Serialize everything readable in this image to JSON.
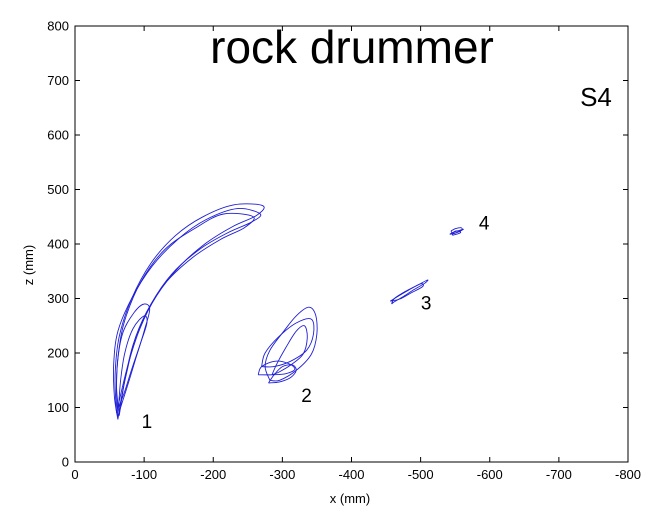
{
  "chart_data": {
    "type": "line",
    "title": "rock drummer",
    "subtitle": "S4",
    "xlabel": "x (mm)",
    "ylabel": "z (mm)",
    "xlim": [
      0,
      -800
    ],
    "ylim": [
      0,
      800
    ],
    "x_ticks": [
      0,
      -100,
      -200,
      -300,
      -400,
      -500,
      -600,
      -700,
      -800
    ],
    "x_tick_labels": [
      "0",
      "-100",
      "-200",
      "-300",
      "-400",
      "-500",
      "-600",
      "-700",
      "-800"
    ],
    "y_ticks": [
      0,
      100,
      200,
      300,
      400,
      500,
      600,
      700,
      800
    ],
    "y_tick_labels": [
      "0",
      "100",
      "200",
      "300",
      "400",
      "500",
      "600",
      "700",
      "800"
    ],
    "grid": false,
    "line_color": "#1f1fd6",
    "series": [
      {
        "label": "1",
        "label_at": [
          -104,
          62
        ],
        "loops": [
          [
            [
              -62,
              78
            ],
            [
              -57,
              120
            ],
            [
              -56,
              180
            ],
            [
              -62,
              240
            ],
            [
              -82,
              300
            ],
            [
              -112,
              360
            ],
            [
              -150,
              410
            ],
            [
              -190,
              445
            ],
            [
              -235,
              465
            ],
            [
              -268,
              455
            ],
            [
              -255,
              440
            ],
            [
              -220,
              420
            ],
            [
              -180,
              390
            ],
            [
              -140,
              345
            ],
            [
              -110,
              290
            ],
            [
              -88,
              230
            ],
            [
              -74,
              160
            ],
            [
              -66,
              110
            ],
            [
              -62,
              78
            ]
          ],
          [
            [
              -64,
              85
            ],
            [
              -60,
              140
            ],
            [
              -63,
              200
            ],
            [
              -72,
              260
            ],
            [
              -95,
              330
            ],
            [
              -130,
              390
            ],
            [
              -175,
              430
            ],
            [
              -215,
              455
            ],
            [
              -258,
              450
            ],
            [
              -245,
              430
            ],
            [
              -210,
              408
            ],
            [
              -170,
              375
            ],
            [
              -132,
              330
            ],
            [
              -104,
              275
            ],
            [
              -84,
              215
            ],
            [
              -72,
              150
            ],
            [
              -64,
              85
            ]
          ],
          [
            [
              -60,
              90
            ],
            [
              -58,
              160
            ],
            [
              -64,
              230
            ],
            [
              -82,
              300
            ],
            [
              -110,
              365
            ],
            [
              -145,
              415
            ],
            [
              -185,
              450
            ],
            [
              -230,
              472
            ],
            [
              -272,
              470
            ],
            [
              -262,
              452
            ],
            [
              -228,
              432
            ],
            [
              -190,
              402
            ],
            [
              -152,
              360
            ],
            [
              -118,
              305
            ],
            [
              -94,
              245
            ],
            [
              -76,
              175
            ],
            [
              -60,
              90
            ]
          ],
          [
            [
              -62,
              82
            ],
            [
              -60,
              130
            ],
            [
              -62,
              190
            ],
            [
              -70,
              240
            ],
            [
              -86,
              275
            ],
            [
              -100,
              290
            ],
            [
              -108,
              280
            ],
            [
              -100,
              240
            ],
            [
              -88,
              190
            ],
            [
              -76,
              140
            ],
            [
              -66,
              100
            ],
            [
              -62,
              82
            ]
          ],
          [
            [
              -63,
              100
            ],
            [
              -66,
              150
            ],
            [
              -72,
              200
            ],
            [
              -84,
              245
            ],
            [
              -100,
              268
            ],
            [
              -104,
              255
            ],
            [
              -94,
              215
            ],
            [
              -82,
              170
            ],
            [
              -72,
              130
            ],
            [
              -63,
              100
            ]
          ]
        ]
      },
      {
        "label": "2",
        "label_at": [
          -335,
          110
        ],
        "loops": [
          [
            [
              -282,
              150
            ],
            [
              -275,
              175
            ],
            [
              -282,
              205
            ],
            [
              -302,
              240
            ],
            [
              -320,
              268
            ],
            [
              -338,
              284
            ],
            [
              -348,
              270
            ],
            [
              -350,
              235
            ],
            [
              -342,
              198
            ],
            [
              -320,
              168
            ],
            [
              -296,
              150
            ],
            [
              -282,
              150
            ]
          ],
          [
            [
              -270,
              175
            ],
            [
              -275,
              200
            ],
            [
              -295,
              230
            ],
            [
              -320,
              255
            ],
            [
              -342,
              262
            ],
            [
              -345,
              235
            ],
            [
              -335,
              205
            ],
            [
              -312,
              185
            ],
            [
              -288,
              175
            ],
            [
              -270,
              175
            ]
          ],
          [
            [
              -285,
              160
            ],
            [
              -292,
              180
            ],
            [
              -305,
              210
            ],
            [
              -320,
              240
            ],
            [
              -332,
              250
            ],
            [
              -336,
              228
            ],
            [
              -330,
              198
            ],
            [
              -312,
              178
            ],
            [
              -295,
              165
            ],
            [
              -285,
              160
            ]
          ],
          [
            [
              -280,
              145
            ],
            [
              -288,
              160
            ],
            [
              -300,
              175
            ],
            [
              -315,
              178
            ],
            [
              -320,
              168
            ],
            [
              -312,
              155
            ],
            [
              -296,
              147
            ],
            [
              -280,
              145
            ]
          ],
          [
            [
              -265,
              160
            ],
            [
              -270,
              175
            ],
            [
              -290,
              185
            ],
            [
              -310,
              180
            ],
            [
              -318,
              170
            ],
            [
              -305,
              162
            ],
            [
              -285,
              160
            ],
            [
              -265,
              160
            ]
          ]
        ]
      },
      {
        "label": "3",
        "label_at": [
          -508,
          280
        ],
        "loops": [
          [
            [
              -458,
              290
            ],
            [
              -462,
              300
            ],
            [
              -478,
              313
            ],
            [
              -495,
              324
            ],
            [
              -510,
              334
            ],
            [
              -506,
              328
            ],
            [
              -490,
              316
            ],
            [
              -474,
              303
            ],
            [
              -462,
              294
            ],
            [
              -458,
              290
            ]
          ],
          [
            [
              -456,
              295
            ],
            [
              -466,
              303
            ],
            [
              -482,
              315
            ],
            [
              -500,
              327
            ],
            [
              -503,
              322
            ],
            [
              -486,
              310
            ],
            [
              -470,
              299
            ],
            [
              -456,
              295
            ]
          ]
        ]
      },
      {
        "label": "4",
        "label_at": [
          -592,
          427
        ],
        "loops": [
          [
            [
              -542,
              418
            ],
            [
              -548,
              422
            ],
            [
              -556,
              425
            ],
            [
              -562,
              427
            ],
            [
              -556,
              423
            ],
            [
              -548,
              419
            ],
            [
              -542,
              418
            ]
          ],
          [
            [
              -544,
              424
            ],
            [
              -550,
              428
            ],
            [
              -558,
              430
            ],
            [
              -560,
              426
            ],
            [
              -552,
              421
            ],
            [
              -546,
              420
            ],
            [
              -544,
              424
            ]
          ],
          [
            [
              -546,
              416
            ],
            [
              -552,
              418
            ],
            [
              -558,
              421
            ],
            [
              -554,
              424
            ],
            [
              -548,
              422
            ],
            [
              -546,
              416
            ]
          ]
        ]
      }
    ]
  }
}
